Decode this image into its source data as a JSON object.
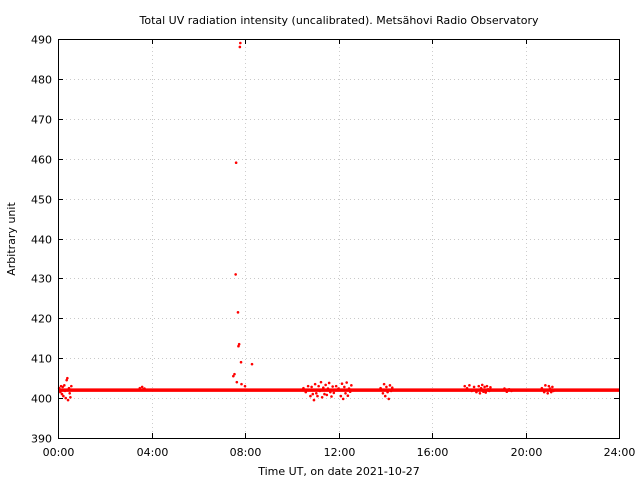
{
  "chart_data": {
    "type": "scatter",
    "title": "Total UV radiation intensity (uncalibrated). Metsähovi Radio Observatory",
    "xlabel": "Time UT, on date 2021-10-27",
    "ylabel": "Arbitrary unit",
    "xlim": [
      0,
      24
    ],
    "ylim": [
      390,
      490
    ],
    "x_ticks": [
      {
        "value": 0,
        "label": "00:00"
      },
      {
        "value": 4,
        "label": "04:00"
      },
      {
        "value": 8,
        "label": "08:00"
      },
      {
        "value": 12,
        "label": "12:00"
      },
      {
        "value": 16,
        "label": "16:00"
      },
      {
        "value": 20,
        "label": "20:00"
      },
      {
        "value": 24,
        "label": "24:00"
      }
    ],
    "y_ticks": [
      390,
      400,
      410,
      420,
      430,
      440,
      450,
      460,
      470,
      480,
      490
    ],
    "grid": true,
    "marker_color": "#ff0000",
    "baseline": {
      "x_start": 0,
      "x_end": 24,
      "value": 402
    },
    "series": [
      {
        "points": [
          [
            0.05,
            402.5
          ],
          [
            0.1,
            401.5
          ],
          [
            0.13,
            403
          ],
          [
            0.17,
            401
          ],
          [
            0.2,
            402.8
          ],
          [
            0.23,
            400.5
          ],
          [
            0.27,
            403.2
          ],
          [
            0.3,
            401.8
          ],
          [
            0.33,
            400
          ],
          [
            0.37,
            404.5
          ],
          [
            0.4,
            405
          ],
          [
            0.43,
            399.5
          ],
          [
            0.47,
            402.5
          ],
          [
            0.5,
            401.2
          ],
          [
            0.53,
            400.2
          ],
          [
            0.57,
            403
          ],
          [
            3.5,
            402.5
          ],
          [
            3.55,
            402
          ],
          [
            3.6,
            402.8
          ],
          [
            3.65,
            402.2
          ],
          [
            3.7,
            402.4
          ],
          [
            7.5,
            405.5
          ],
          [
            7.55,
            406
          ],
          [
            7.6,
            431
          ],
          [
            7.62,
            459
          ],
          [
            7.65,
            404
          ],
          [
            7.7,
            421.5
          ],
          [
            7.72,
            413
          ],
          [
            7.75,
            413.5
          ],
          [
            7.78,
            488
          ],
          [
            7.8,
            489
          ],
          [
            7.83,
            409
          ],
          [
            7.85,
            403.5
          ],
          [
            8.0,
            403
          ],
          [
            8.3,
            408.5
          ],
          [
            10.5,
            402.5
          ],
          [
            10.6,
            401.5
          ],
          [
            10.7,
            403
          ],
          [
            10.8,
            400.5
          ],
          [
            10.85,
            402.8
          ],
          [
            10.9,
            401
          ],
          [
            10.95,
            399.5
          ],
          [
            11.0,
            403.5
          ],
          [
            11.05,
            401.2
          ],
          [
            11.1,
            400.5
          ],
          [
            11.15,
            403
          ],
          [
            11.2,
            401.8
          ],
          [
            11.25,
            404
          ],
          [
            11.3,
            400.2
          ],
          [
            11.35,
            402.6
          ],
          [
            11.4,
            401
          ],
          [
            11.45,
            403.3
          ],
          [
            11.5,
            400.8
          ],
          [
            11.55,
            402.4
          ],
          [
            11.6,
            403.8
          ],
          [
            11.65,
            401.5
          ],
          [
            11.7,
            400.4
          ],
          [
            11.75,
            402.9
          ],
          [
            11.8,
            401.3
          ],
          [
            11.9,
            403
          ],
          [
            12.0,
            402.4
          ],
          [
            12.1,
            400.5
          ],
          [
            12.15,
            403.6
          ],
          [
            12.2,
            399.8
          ],
          [
            12.25,
            402.8
          ],
          [
            12.3,
            401.2
          ],
          [
            12.35,
            403.9
          ],
          [
            12.4,
            400.6
          ],
          [
            12.45,
            402.4
          ],
          [
            12.5,
            401.6
          ],
          [
            12.55,
            403.2
          ],
          [
            13.8,
            402.5
          ],
          [
            13.9,
            401.2
          ],
          [
            13.95,
            403.5
          ],
          [
            14.0,
            400.5
          ],
          [
            14.05,
            402.8
          ],
          [
            14.1,
            401.5
          ],
          [
            14.15,
            399.8
          ],
          [
            14.2,
            403.2
          ],
          [
            14.25,
            401.8
          ],
          [
            14.3,
            402.6
          ],
          [
            17.4,
            403
          ],
          [
            17.5,
            402.5
          ],
          [
            17.6,
            403.2
          ],
          [
            17.7,
            401.8
          ],
          [
            17.8,
            402.8
          ],
          [
            17.9,
            401.5
          ],
          [
            18.0,
            403
          ],
          [
            18.05,
            401.2
          ],
          [
            18.1,
            402.5
          ],
          [
            18.15,
            403.3
          ],
          [
            18.2,
            401.6
          ],
          [
            18.25,
            402.8
          ],
          [
            18.3,
            401.4
          ],
          [
            18.35,
            403
          ],
          [
            18.4,
            402.2
          ],
          [
            18.45,
            401.8
          ],
          [
            18.5,
            402.7
          ],
          [
            19.1,
            402.4
          ],
          [
            19.2,
            401.6
          ],
          [
            19.3,
            402.2
          ],
          [
            19.4,
            401.8
          ],
          [
            20.7,
            402.5
          ],
          [
            20.8,
            401.5
          ],
          [
            20.85,
            403.2
          ],
          [
            20.9,
            402
          ],
          [
            20.95,
            401.2
          ],
          [
            21.0,
            403
          ],
          [
            21.05,
            402.4
          ],
          [
            21.1,
            401.5
          ],
          [
            21.15,
            402.8
          ],
          [
            21.2,
            401.8
          ]
        ]
      }
    ]
  }
}
